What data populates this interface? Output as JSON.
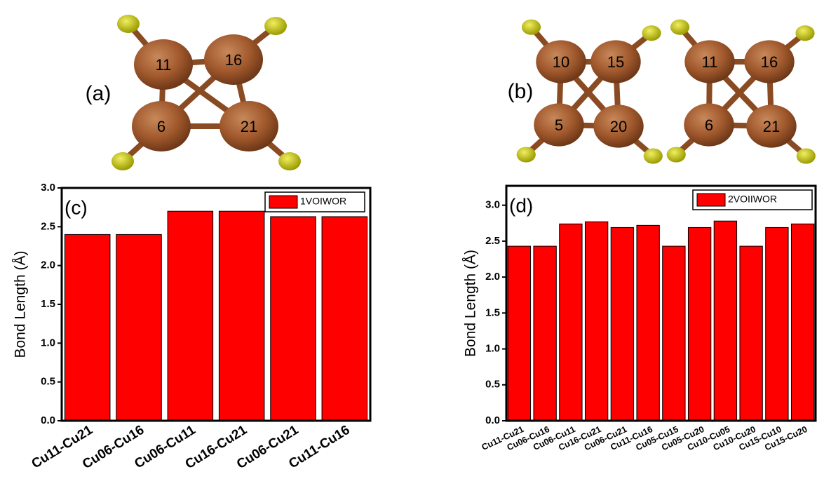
{
  "diagrams": [
    {
      "label": "(a)",
      "molecules": [
        {
          "atoms": [
            "11",
            "16",
            "6",
            "21"
          ]
        }
      ]
    },
    {
      "label": "(b)",
      "molecules": [
        {
          "atoms": [
            "10",
            "15",
            "5",
            "20"
          ]
        },
        {
          "atoms": [
            "11",
            "16",
            "6",
            "21"
          ]
        }
      ]
    }
  ],
  "chart_data": [
    {
      "type": "bar",
      "annotation": "(c)",
      "y_label": "Bond Length (Å)",
      "categories": [
        "Cu11-Cu21",
        "Cu06-Cu16",
        "Cu06-Cu11",
        "Cu16-Cu21",
        "Cu06-Cu21",
        "Cu11-Cu16"
      ],
      "series": [
        {
          "name": "1VOIWOR",
          "color": "#ff0000",
          "values": [
            2.4,
            2.4,
            2.7,
            2.7,
            2.63,
            2.63
          ]
        }
      ],
      "ylim": [
        0,
        3.0
      ],
      "yticks": [
        {
          "value": 0,
          "label": "0.0"
        },
        0.5,
        {
          "value": 1,
          "label": "1.0"
        },
        1.5,
        {
          "value": 2,
          "label": "2.0"
        },
        2.5,
        {
          "value": 3,
          "label": "3.0"
        }
      ],
      "legend": "upper right"
    },
    {
      "type": "bar",
      "annotation": "(d)",
      "y_label": "Bond Length (Å)",
      "categories": [
        "Cu11-Cu21",
        "Cu06-Cu16",
        "Cu06-Cu11",
        "Cu16-Cu21",
        "Cu06-Cu21",
        "Cu11-Cu16",
        "Cu05-Cu15",
        "Cu05-Cu20",
        "Cu10-Cu05",
        "Cu10-Cu20",
        "Cu15-Cu10",
        "Cu15-Cu20"
      ],
      "series": [
        {
          "name": "2VOIIWOR",
          "color": "#ff0000",
          "values": [
            2.43,
            2.43,
            2.74,
            2.77,
            2.69,
            2.72,
            2.43,
            2.69,
            2.78,
            2.43,
            2.69,
            2.74
          ]
        }
      ],
      "ylim": [
        0,
        3.27
      ],
      "yticks": [
        {
          "value": 0,
          "label": "0.0"
        },
        0.5,
        {
          "value": 1,
          "label": "1.0"
        },
        1.5,
        {
          "value": 2,
          "label": "2.0"
        },
        2.5,
        {
          "value": 3,
          "label": "3.0"
        }
      ],
      "legend": "upper right"
    }
  ]
}
